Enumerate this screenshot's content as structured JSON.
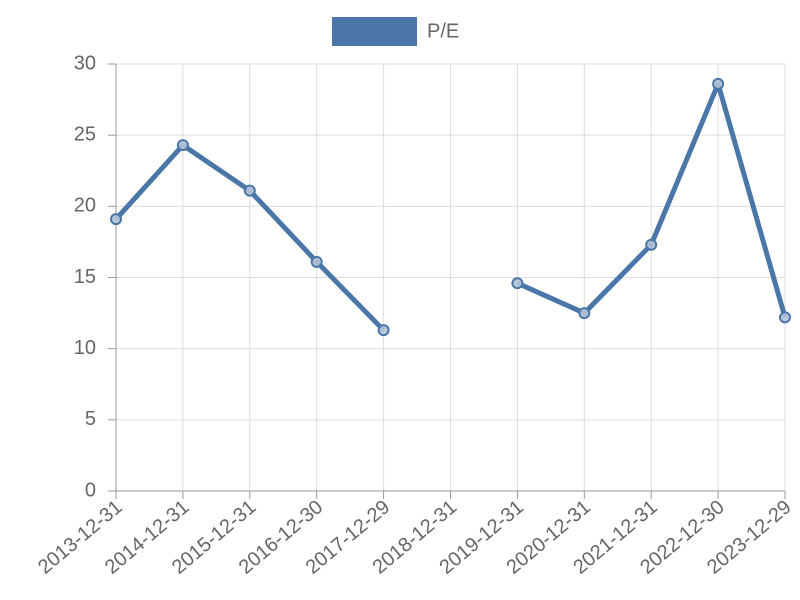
{
  "chart_data": {
    "type": "line",
    "categories": [
      "2013-12-31",
      "2014-12-31",
      "2015-12-31",
      "2016-12-30",
      "2017-12-29",
      "2018-12-31",
      "2019-12-31",
      "2020-12-31",
      "2021-12-31",
      "2022-12-30",
      "2023-12-29"
    ],
    "series": [
      {
        "name": "P/E",
        "color": "#4a76a8",
        "values": [
          19.1,
          24.3,
          21.1,
          16.1,
          11.3,
          null,
          14.6,
          12.5,
          17.3,
          28.6,
          12.2
        ]
      }
    ],
    "ylim": [
      0,
      30
    ],
    "yticks": [
      0,
      5,
      10,
      15,
      20,
      25,
      30
    ],
    "grid": true,
    "legend": "top"
  }
}
